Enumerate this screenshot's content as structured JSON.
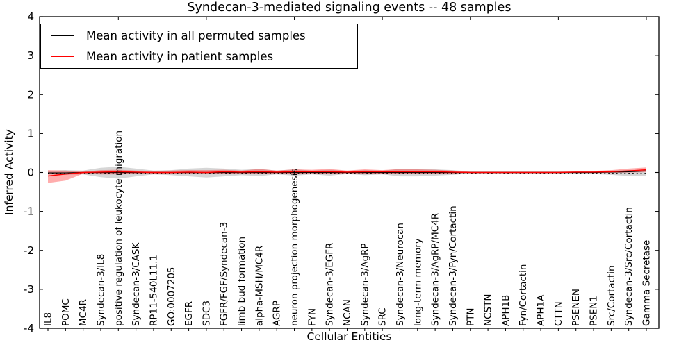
{
  "title": "Syndecan-3-mediated signaling events -- 48 samples",
  "legend": {
    "items": [
      {
        "label": "Mean activity in all permuted samples",
        "color": "#000000"
      },
      {
        "label": "Mean activity in patient samples",
        "color": "#ff0000"
      }
    ]
  },
  "axes": {
    "x_label": "Cellular Entities",
    "y_label": "Inferred Activity",
    "y_ticks": [
      "4",
      "3",
      "2",
      "1",
      "0",
      "-1",
      "-2",
      "-3",
      "-4"
    ]
  },
  "chart_data": {
    "type": "line",
    "title": "Syndecan-3-mediated signaling events -- 48 samples",
    "xlabel": "Cellular Entities",
    "ylabel": "Inferred Activity",
    "ylim": [
      -4,
      4
    ],
    "grid": false,
    "legend_position": "upper left",
    "x_tick_rotation": 90,
    "categories": [
      "IL8",
      "POMC",
      "MC4R",
      "Syndecan-3/IL8",
      "positive regulation of leukocyte migration",
      "Syndecan-3/CASK",
      "RP11-540L11.1",
      "GO:0007205",
      "EGFR",
      "SDC3",
      "FGFR/FGF/Syndecan-3",
      "limb bud formation",
      "alpha-MSH/MC4R",
      "AGRP",
      "neuron projection morphogenesis",
      "FYN",
      "Syndecan-3/EGFR",
      "NCAN",
      "Syndecan-3/AgRP",
      "SRC",
      "Syndecan-3/Neurocan",
      "long-term memory",
      "Syndecan-3/AgRP/MC4R",
      "Syndecan-3/Fyn/Cortactin",
      "PTN",
      "NCSTN",
      "APH1B",
      "Fyn/Cortactin",
      "APH1A",
      "CTTN",
      "PSENEN",
      "PSEN1",
      "Src/Cortactin",
      "Syndecan-3/Src/Cortactin",
      "Gamma Secretase"
    ],
    "series": [
      {
        "name": "Mean activity in all permuted samples",
        "color": "#000000",
        "style": "solid",
        "width": 1.2,
        "values": [
          -0.01,
          -0.01,
          0,
          0,
          0,
          0,
          0,
          0,
          0,
          0,
          0,
          0,
          0,
          0,
          0,
          0,
          0,
          0,
          0,
          0,
          0,
          0,
          0,
          0,
          0,
          0,
          0,
          0,
          0,
          0,
          0,
          0,
          0.01,
          0.02,
          0.04
        ]
      },
      {
        "name": "Mean activity in patient samples",
        "color": "#ff0000",
        "style": "solid",
        "width": 1.4,
        "values": [
          -0.09,
          -0.04,
          0,
          0.01,
          0.02,
          0.01,
          0,
          0,
          0.01,
          0,
          0.02,
          0.01,
          0.02,
          0.01,
          0.02,
          0.02,
          0.02,
          0.01,
          0.02,
          0.02,
          0.02,
          0.02,
          0.02,
          0.01,
          0,
          0,
          0,
          0,
          0,
          0,
          0.01,
          0.01,
          0.02,
          0.04,
          0.07
        ]
      }
    ],
    "baseline": {
      "name": "zero-reference",
      "color": "#000000",
      "style": "dotted",
      "value": -0.025
    },
    "bands": [
      {
        "name": "permuted-samples-range",
        "color": "#000000",
        "opacity": 0.16,
        "upper": [
          0.04,
          0.06,
          0.05,
          0.12,
          0.15,
          0.1,
          0.05,
          0.06,
          0.1,
          0.12,
          0.1,
          0.07,
          0.09,
          0.05,
          0.08,
          0.05,
          0.07,
          0.04,
          0.06,
          0.05,
          0.09,
          0.09,
          0.08,
          0.06,
          0.03,
          0.03,
          0.03,
          0.03,
          0.03,
          0.03,
          0.04,
          0.04,
          0.05,
          0.06,
          0.05
        ],
        "lower": [
          -0.04,
          -0.06,
          -0.05,
          -0.12,
          -0.16,
          -0.1,
          -0.05,
          -0.07,
          -0.1,
          -0.13,
          -0.1,
          -0.07,
          -0.09,
          -0.05,
          -0.08,
          -0.05,
          -0.08,
          -0.04,
          -0.07,
          -0.05,
          -0.1,
          -0.1,
          -0.08,
          -0.06,
          -0.03,
          -0.03,
          -0.03,
          -0.03,
          -0.03,
          -0.03,
          -0.04,
          -0.04,
          -0.06,
          -0.09,
          -0.08
        ]
      },
      {
        "name": "patient-samples-range",
        "color": "#ff0000",
        "opacity": 0.32,
        "upper": [
          0.06,
          0.05,
          0.02,
          0.06,
          0.07,
          0.05,
          0.04,
          0.05,
          0.06,
          0.06,
          0.07,
          0.05,
          0.09,
          0.05,
          0.08,
          0.07,
          0.09,
          0.05,
          0.08,
          0.06,
          0.09,
          0.08,
          0.07,
          0.05,
          0.02,
          0.02,
          0.02,
          0.02,
          0.02,
          0.02,
          0.03,
          0.04,
          0.06,
          0.1,
          0.13
        ],
        "lower": [
          -0.27,
          -0.21,
          -0.03,
          -0.05,
          -0.05,
          -0.04,
          -0.03,
          -0.03,
          -0.04,
          -0.04,
          -0.03,
          -0.03,
          -0.04,
          -0.02,
          -0.03,
          -0.02,
          -0.04,
          -0.02,
          -0.03,
          -0.03,
          -0.04,
          -0.04,
          -0.04,
          -0.03,
          -0.01,
          -0.01,
          -0.01,
          -0.01,
          -0.01,
          -0.01,
          -0.01,
          -0.01,
          -0.01,
          0.0,
          0.01
        ]
      }
    ]
  }
}
